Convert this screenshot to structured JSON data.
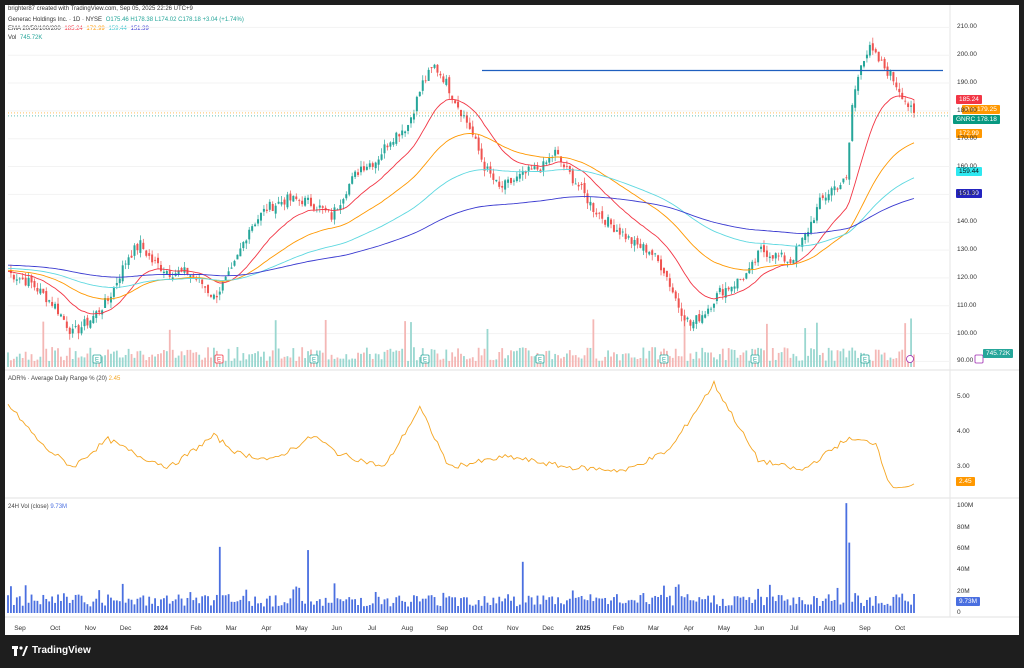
{
  "header": {
    "credit": "brighter87 created with TradingView.com, Sep 05, 2025 22:26 UTC+9",
    "symbol_line": "Generac Holdings Inc. · 1D · NYSE",
    "ohlc": "O175.46 H178.38 L174.02 C178.18 +3.04 (+1.74%)",
    "ema_label": "EMA 20/50/100/200",
    "ema_values": [
      "185.24",
      "172.99",
      "159.44",
      "151.39"
    ],
    "vol_label": "Vol",
    "vol_value": "745.72K"
  },
  "panes": {
    "adr_label": "ADR% · Average Daily Range % (20)",
    "adr_value": "2.45",
    "vol24_label": "24H Vol (close)",
    "vol24_value": "9.73M"
  },
  "price_tags": {
    "ema20": "185.24",
    "pre_label": "Pre",
    "pre_value": "179.25",
    "symbol": "GNRC",
    "last": "178.18",
    "ema50": "172.99",
    "ema100": "159.44",
    "ema200": "151.39",
    "volume": "745.72K",
    "adr": "2.45",
    "vol24": "9.73M"
  },
  "colors": {
    "up": "#26a69a",
    "down": "#ef5350",
    "ema20": "#f23645",
    "ema50": "#ff9800",
    "ema100": "#5ed8e0",
    "ema200": "#3a3ad0",
    "adr": "#f5a623",
    "vol24": "#4a6fe0",
    "resistance": "#1f5fbf",
    "pre": "#ff9800",
    "last": "#089981"
  },
  "footer": {
    "brand": "TradingView"
  },
  "chart_data": [
    {
      "type": "candlestick",
      "title": "Generac Holdings Inc. · 1D · NYSE",
      "x": [
        "Sep",
        "Oct",
        "Nov",
        "Dec",
        "2024",
        "Feb",
        "Mar",
        "Apr",
        "May",
        "Jun",
        "Jul",
        "Aug",
        "Sep",
        "Oct",
        "Nov",
        "Dec",
        "2025",
        "Feb",
        "Mar",
        "Apr",
        "May",
        "Jun",
        "Jul",
        "Aug",
        "Sep",
        "Oct"
      ],
      "y_ticks": [
        90,
        100,
        110,
        120,
        130,
        140,
        150,
        160,
        170,
        180,
        190,
        200,
        210
      ],
      "ylim": [
        88,
        213
      ],
      "approx_close_path": [
        [
          0,
          122
        ],
        [
          8,
          118
        ],
        [
          16,
          110
        ],
        [
          22,
          100
        ],
        [
          28,
          105
        ],
        [
          34,
          112
        ],
        [
          41,
          128
        ],
        [
          45,
          132
        ],
        [
          49,
          126
        ],
        [
          55,
          122
        ],
        [
          61,
          122
        ],
        [
          66,
          118
        ],
        [
          70,
          113
        ],
        [
          76,
          122
        ],
        [
          82,
          138
        ],
        [
          88,
          145
        ],
        [
          94,
          148
        ],
        [
          100,
          148
        ],
        [
          105,
          146
        ],
        [
          110,
          142
        ],
        [
          115,
          152
        ],
        [
          120,
          160
        ],
        [
          125,
          162
        ],
        [
          130,
          170
        ],
        [
          136,
          175
        ],
        [
          141,
          190
        ],
        [
          145,
          196
        ],
        [
          148,
          192
        ],
        [
          152,
          184
        ],
        [
          157,
          174
        ],
        [
          162,
          160
        ],
        [
          167,
          152
        ],
        [
          172,
          155
        ],
        [
          177,
          158
        ],
        [
          182,
          160
        ],
        [
          186,
          165
        ],
        [
          189,
          160
        ],
        [
          194,
          153
        ],
        [
          199,
          145
        ],
        [
          204,
          140
        ],
        [
          209,
          136
        ],
        [
          213,
          132
        ],
        [
          218,
          130
        ],
        [
          223,
          123
        ],
        [
          228,
          110
        ],
        [
          232,
          103
        ],
        [
          237,
          108
        ],
        [
          242,
          115
        ],
        [
          247,
          118
        ],
        [
          252,
          122
        ],
        [
          256,
          130
        ],
        [
          261,
          128
        ],
        [
          266,
          126
        ],
        [
          271,
          135
        ],
        [
          276,
          147
        ],
        [
          280,
          152
        ],
        [
          285,
          155
        ],
        [
          287,
          182
        ],
        [
          290,
          198
        ],
        [
          293,
          202
        ],
        [
          296,
          198
        ],
        [
          300,
          193
        ],
        [
          304,
          186
        ],
        [
          308,
          178
        ]
      ],
      "resistance_level": 194.5,
      "resistance_range": [
        "Oct",
        "Sep"
      ],
      "earnings_markers": [
        "Sep",
        "Nov",
        "Feb",
        "Apr",
        "Jul",
        "Oct",
        "Dec",
        "Feb",
        "Apr",
        "Jul"
      ],
      "series": [
        {
          "name": "EMA 20",
          "last": 185.24
        },
        {
          "name": "EMA 50",
          "last": 172.99
        },
        {
          "name": "EMA 100",
          "last": 159.44
        },
        {
          "name": "EMA 200",
          "last": 151.39
        }
      ],
      "pre_market": 179.25,
      "last": 178.18
    },
    {
      "type": "line",
      "title": "ADR% · Average Daily Range % (20)",
      "y_ticks": [
        3.0,
        4.0,
        5.0
      ],
      "ylim": [
        2.2,
        5.7
      ],
      "approx_path": [
        [
          0,
          4.8
        ],
        [
          12,
          3.6
        ],
        [
          22,
          3.0
        ],
        [
          34,
          3.8
        ],
        [
          45,
          3.3
        ],
        [
          55,
          3.0
        ],
        [
          70,
          3.9
        ],
        [
          78,
          3.4
        ],
        [
          90,
          3.2
        ],
        [
          104,
          3.9
        ],
        [
          112,
          3.4
        ],
        [
          128,
          3.0
        ],
        [
          140,
          4.7
        ],
        [
          150,
          3.0
        ],
        [
          170,
          3.3
        ],
        [
          190,
          3.0
        ],
        [
          210,
          2.9
        ],
        [
          225,
          3.5
        ],
        [
          240,
          5.4
        ],
        [
          255,
          3.2
        ],
        [
          270,
          2.9
        ],
        [
          285,
          3.8
        ],
        [
          295,
          3.7
        ],
        [
          300,
          2.45
        ],
        [
          308,
          2.45
        ]
      ],
      "last": 2.45
    },
    {
      "type": "bar",
      "title": "24H Vol (close)",
      "y_ticks": [
        "0",
        "20M",
        "40M",
        "60M",
        "80M",
        "100M"
      ],
      "ylim": [
        0,
        105
      ],
      "spikes_millions": [
        {
          "date": "Sep",
          "value": 26
        },
        {
          "date": "Feb",
          "value": 62
        },
        {
          "date": "May",
          "value": 59
        },
        {
          "date": "Nov",
          "value": 48
        },
        {
          "date": "Aug",
          "value": 103
        }
      ],
      "baseline_millions": 12,
      "last": 9.73
    }
  ]
}
